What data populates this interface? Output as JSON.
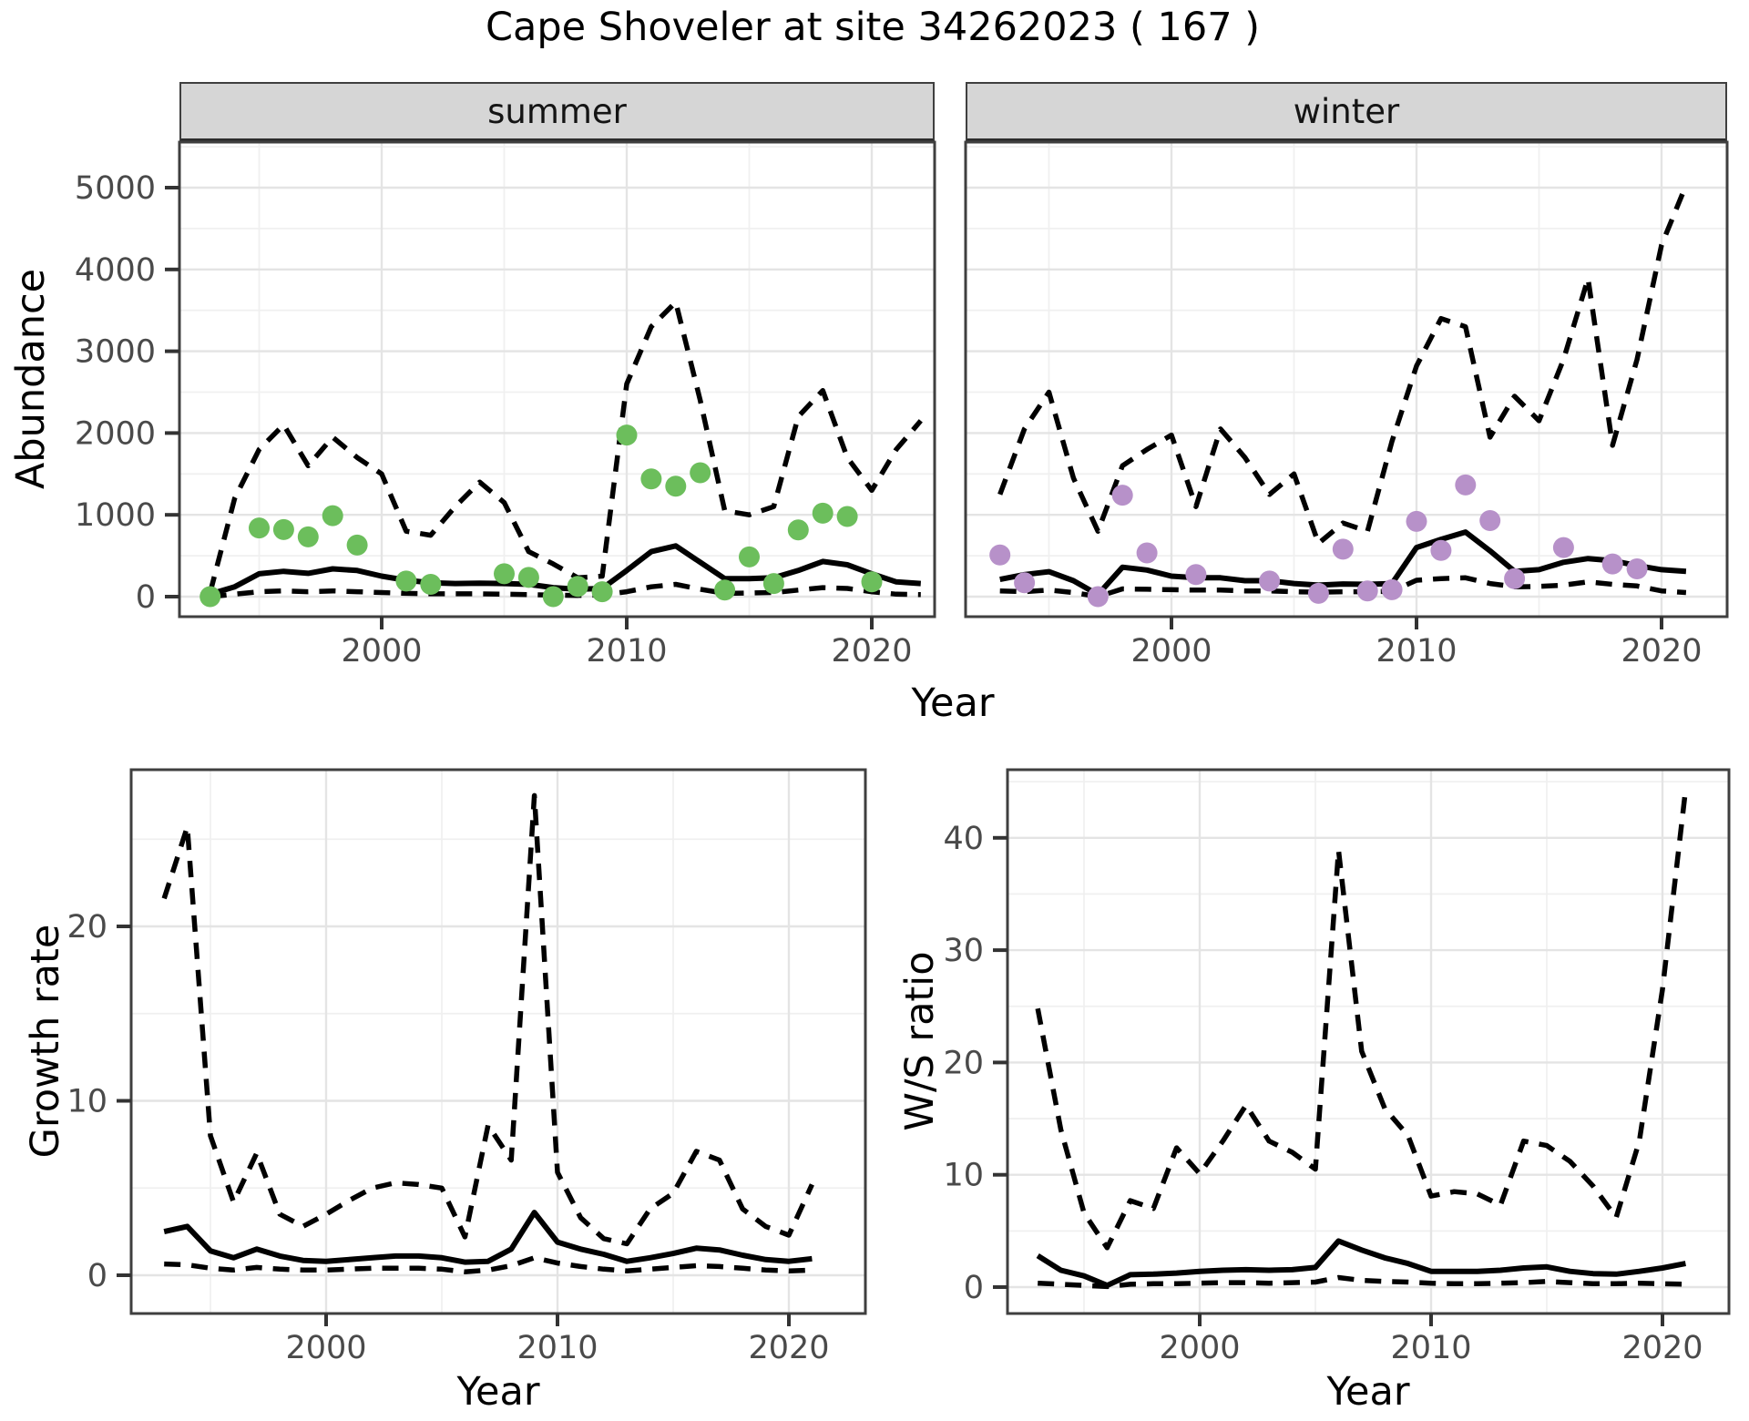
{
  "title": "Cape Shoveler at site 34262023 ( 167 )",
  "colors": {
    "summer_point": "#6cbe5c",
    "winter_point": "#b791c9",
    "line": "#000000",
    "grid_major": "#e4e4e4",
    "grid_minor": "#f0f0f0",
    "strip_bg": "#d6d6d6",
    "panel_border": "#3f3f3f",
    "tick_text": "#4a4a4a"
  },
  "chart_data": [
    {
      "id": "abundance",
      "type": "line",
      "xlabel": "Year",
      "ylabel": "Abundance",
      "xticks": [
        2000,
        2010,
        2020
      ],
      "yticks": [
        0,
        1000,
        2000,
        3000,
        4000,
        5000
      ],
      "xlim": [
        1991.6,
        2022.8
      ],
      "ylim": [
        -470,
        5570
      ],
      "grid": true,
      "legend_position": "none",
      "facets": [
        {
          "label": "summer",
          "point_color": "#6cbe5c",
          "observed": {
            "years": [
              1993,
              1995,
              1996,
              1997,
              1998,
              1999,
              2001,
              2002,
              2005,
              2006,
              2007,
              2008,
              2009,
              2010,
              2011,
              2012,
              2013,
              2014,
              2015,
              2016,
              2017,
              2018,
              2019,
              2020
            ],
            "values": [
              0,
              840,
              820,
              730,
              990,
              630,
              190,
              150,
              280,
              235,
              0,
              125,
              60,
              1975,
              1440,
              1350,
              1515,
              80,
              485,
              160,
              815,
              1020,
              980,
              180
            ]
          },
          "series": [
            {
              "name": "fitted",
              "style": "solid",
              "years": [
                1993,
                1994,
                1995,
                1996,
                1997,
                1998,
                1999,
                2000,
                2001,
                2002,
                2003,
                2004,
                2005,
                2006,
                2007,
                2008,
                2009,
                2010,
                2011,
                2012,
                2013,
                2014,
                2015,
                2016,
                2017,
                2018,
                2019,
                2020,
                2021,
                2022
              ],
              "values": [
                30,
                120,
                280,
                310,
                285,
                340,
                320,
                250,
                200,
                170,
                160,
                165,
                160,
                150,
                110,
                90,
                100,
                320,
                550,
                620,
                420,
                220,
                220,
                230,
                320,
                430,
                390,
                280,
                180,
                160
              ]
            },
            {
              "name": "upper_ci",
              "style": "dashed",
              "years": [
                1993,
                1994,
                1995,
                1996,
                1997,
                1998,
                1999,
                2000,
                2001,
                2002,
                2003,
                2004,
                2005,
                2006,
                2007,
                2008,
                2009,
                2010,
                2011,
                2012,
                2013,
                2014,
                2015,
                2016,
                2017,
                2018,
                2019,
                2020,
                2021,
                2022
              ],
              "values": [
                50,
                1200,
                1800,
                2100,
                1600,
                1950,
                1700,
                1500,
                800,
                750,
                1100,
                1400,
                1150,
                550,
                400,
                230,
                250,
                2600,
                3300,
                3600,
                2400,
                1050,
                1000,
                1100,
                2200,
                2520,
                1700,
                1300,
                1800,
                2150
              ]
            },
            {
              "name": "lower_ci",
              "style": "dashed",
              "years": [
                1993,
                1994,
                1995,
                1996,
                1997,
                1998,
                1999,
                2000,
                2001,
                2002,
                2003,
                2004,
                2005,
                2006,
                2007,
                2008,
                2009,
                2010,
                2011,
                2012,
                2013,
                2014,
                2015,
                2016,
                2017,
                2018,
                2019,
                2020,
                2021,
                2022
              ],
              "values": [
                0,
                30,
                60,
                70,
                60,
                70,
                60,
                50,
                40,
                35,
                35,
                35,
                30,
                25,
                20,
                15,
                20,
                60,
                120,
                150,
                90,
                40,
                45,
                50,
                80,
                110,
                100,
                60,
                30,
                25
              ]
            }
          ]
        },
        {
          "label": "winter",
          "point_color": "#b791c9",
          "observed": {
            "years": [
              1993,
              1994,
              1997,
              1998,
              1999,
              2001,
              2004,
              2006,
              2007,
              2008,
              2009,
              2010,
              2011,
              2012,
              2013,
              2014,
              2016,
              2018,
              2019
            ],
            "values": [
              510,
              170,
              0,
              1240,
              535,
              270,
              190,
              40,
              580,
              70,
              85,
              920,
              565,
              1365,
              930,
              220,
              600,
              400,
              340
            ]
          },
          "series": [
            {
              "name": "fitted",
              "style": "solid",
              "years": [
                1993,
                1994,
                1995,
                1996,
                1997,
                1998,
                1999,
                2000,
                2001,
                2002,
                2003,
                2004,
                2005,
                2006,
                2007,
                2008,
                2009,
                2010,
                2011,
                2012,
                2013,
                2014,
                2015,
                2016,
                2017,
                2018,
                2019,
                2020,
                2021
              ],
              "values": [
                210,
                270,
                305,
                195,
                25,
                360,
                325,
                250,
                230,
                230,
                195,
                195,
                160,
                140,
                155,
                150,
                160,
                600,
                700,
                790,
                560,
                310,
                330,
                420,
                465,
                440,
                380,
                330,
                310
              ]
            },
            {
              "name": "upper_ci",
              "style": "dashed",
              "years": [
                1993,
                1994,
                1995,
                1996,
                1997,
                1998,
                1999,
                2000,
                2001,
                2002,
                2003,
                2004,
                2005,
                2006,
                2007,
                2008,
                2009,
                2010,
                2011,
                2012,
                2013,
                2014,
                2015,
                2016,
                2017,
                2018,
                2019,
                2020,
                2021
              ],
              "values": [
                1250,
                2050,
                2500,
                1450,
                800,
                1600,
                1800,
                1975,
                1100,
                2050,
                1700,
                1250,
                1500,
                650,
                900,
                800,
                1900,
                2820,
                3400,
                3300,
                1950,
                2450,
                2150,
                2900,
                3890,
                1850,
                2900,
                4300,
                5030
              ]
            },
            {
              "name": "lower_ci",
              "style": "dashed",
              "years": [
                1993,
                1994,
                1995,
                1996,
                1997,
                1998,
                1999,
                2000,
                2001,
                2002,
                2003,
                2004,
                2005,
                2006,
                2007,
                2008,
                2009,
                2010,
                2011,
                2012,
                2013,
                2014,
                2015,
                2016,
                2017,
                2018,
                2019,
                2020,
                2021
              ],
              "values": [
                70,
                60,
                80,
                50,
                0,
                95,
                90,
                85,
                80,
                80,
                70,
                70,
                60,
                55,
                60,
                60,
                65,
                200,
                220,
                230,
                160,
                120,
                125,
                140,
                180,
                150,
                130,
                70,
                50
              ]
            }
          ]
        }
      ]
    },
    {
      "id": "growth_rate",
      "type": "line",
      "xlabel": "Year",
      "ylabel": "Growth rate",
      "xticks": [
        2000,
        2010,
        2020
      ],
      "yticks": [
        0,
        10,
        20
      ],
      "xlim": [
        1991.6,
        2023.3
      ],
      "ylim": [
        -2.2,
        29
      ],
      "grid": true,
      "legend_position": "none",
      "series": [
        {
          "name": "fitted",
          "style": "solid",
          "years": [
            1993,
            1994,
            1995,
            1996,
            1997,
            1998,
            1999,
            2000,
            2001,
            2002,
            2003,
            2004,
            2005,
            2006,
            2007,
            2008,
            2009,
            2010,
            2011,
            2012,
            2013,
            2014,
            2015,
            2016,
            2017,
            2018,
            2019,
            2020,
            2021
          ],
          "values": [
            2.5,
            2.8,
            1.4,
            1.0,
            1.5,
            1.1,
            0.85,
            0.8,
            0.9,
            1.0,
            1.1,
            1.1,
            1.0,
            0.75,
            0.8,
            1.5,
            3.6,
            1.9,
            1.5,
            1.2,
            0.8,
            1.0,
            1.25,
            1.55,
            1.45,
            1.15,
            0.9,
            0.8,
            0.95
          ]
        },
        {
          "name": "upper_ci",
          "style": "dashed",
          "years": [
            1993,
            1994,
            1995,
            1996,
            1997,
            1998,
            1999,
            2000,
            2001,
            2002,
            2003,
            2004,
            2005,
            2006,
            2007,
            2008,
            2009,
            2010,
            2011,
            2012,
            2013,
            2014,
            2015,
            2016,
            2017,
            2018,
            2019,
            2020,
            2021
          ],
          "values": [
            21.6,
            25.7,
            8.0,
            4.2,
            7.0,
            3.5,
            2.8,
            3.5,
            4.3,
            5.0,
            5.3,
            5.2,
            5.0,
            2.2,
            8.6,
            6.6,
            27.5,
            5.9,
            3.3,
            2.1,
            1.8,
            3.8,
            4.7,
            7.1,
            6.6,
            3.8,
            2.8,
            2.3,
            5.2
          ]
        },
        {
          "name": "lower_ci",
          "style": "dashed",
          "years": [
            1993,
            1994,
            1995,
            1996,
            1997,
            1998,
            1999,
            2000,
            2001,
            2002,
            2003,
            2004,
            2005,
            2006,
            2007,
            2008,
            2009,
            2010,
            2011,
            2012,
            2013,
            2014,
            2015,
            2016,
            2017,
            2018,
            2019,
            2020,
            2021
          ],
          "values": [
            0.65,
            0.6,
            0.4,
            0.3,
            0.45,
            0.35,
            0.3,
            0.3,
            0.35,
            0.4,
            0.4,
            0.4,
            0.35,
            0.2,
            0.3,
            0.55,
            1.0,
            0.7,
            0.5,
            0.35,
            0.25,
            0.35,
            0.45,
            0.55,
            0.5,
            0.4,
            0.3,
            0.25,
            0.3
          ]
        }
      ]
    },
    {
      "id": "ws_ratio",
      "type": "line",
      "xlabel": "Year",
      "ylabel": "W/S ratio",
      "xticks": [
        2000,
        2010,
        2020
      ],
      "yticks": [
        0,
        10,
        20,
        30,
        40
      ],
      "xlim": [
        1991.6,
        2023.2
      ],
      "ylim": [
        -2.4,
        46.1
      ],
      "grid": true,
      "legend_position": "none",
      "series": [
        {
          "name": "fitted",
          "style": "solid",
          "years": [
            1993,
            1994,
            1995,
            1996,
            1997,
            1998,
            1999,
            2000,
            2001,
            2002,
            2003,
            2004,
            2005,
            2006,
            2007,
            2008,
            2009,
            2010,
            2011,
            2012,
            2013,
            2014,
            2015,
            2016,
            2017,
            2018,
            2019,
            2020,
            2021
          ],
          "values": [
            2.8,
            1.5,
            1.0,
            0.15,
            1.1,
            1.15,
            1.25,
            1.4,
            1.5,
            1.55,
            1.5,
            1.55,
            1.75,
            4.1,
            3.3,
            2.6,
            2.1,
            1.4,
            1.4,
            1.4,
            1.5,
            1.7,
            1.8,
            1.4,
            1.2,
            1.15,
            1.4,
            1.7,
            2.1
          ]
        },
        {
          "name": "upper_ci",
          "style": "dashed",
          "years": [
            1993,
            1994,
            1995,
            1996,
            1997,
            1998,
            1999,
            2000,
            2001,
            2002,
            2003,
            2004,
            2005,
            2006,
            2007,
            2008,
            2009,
            2010,
            2011,
            2012,
            2013,
            2014,
            2015,
            2016,
            2017,
            2018,
            2019,
            2020,
            2021
          ],
          "values": [
            24.8,
            14.0,
            6.6,
            3.5,
            7.7,
            7.0,
            12.4,
            10.1,
            13.0,
            16.2,
            13.0,
            12.0,
            10.5,
            38.9,
            21.0,
            15.9,
            13.5,
            8.1,
            8.5,
            8.3,
            7.3,
            13.0,
            12.6,
            11.2,
            9.0,
            6.2,
            13.0,
            26.5,
            44.3
          ]
        },
        {
          "name": "lower_ci",
          "style": "dashed",
          "years": [
            1993,
            1994,
            1995,
            1996,
            1997,
            1998,
            1999,
            2000,
            2001,
            2002,
            2003,
            2004,
            2005,
            2006,
            2007,
            2008,
            2009,
            2010,
            2011,
            2012,
            2013,
            2014,
            2015,
            2016,
            2017,
            2018,
            2019,
            2020,
            2021
          ],
          "values": [
            0.35,
            0.25,
            0.15,
            0.05,
            0.25,
            0.3,
            0.3,
            0.35,
            0.4,
            0.4,
            0.35,
            0.4,
            0.45,
            0.85,
            0.6,
            0.5,
            0.45,
            0.35,
            0.3,
            0.3,
            0.35,
            0.4,
            0.5,
            0.4,
            0.3,
            0.3,
            0.35,
            0.3,
            0.25
          ]
        }
      ]
    }
  ]
}
